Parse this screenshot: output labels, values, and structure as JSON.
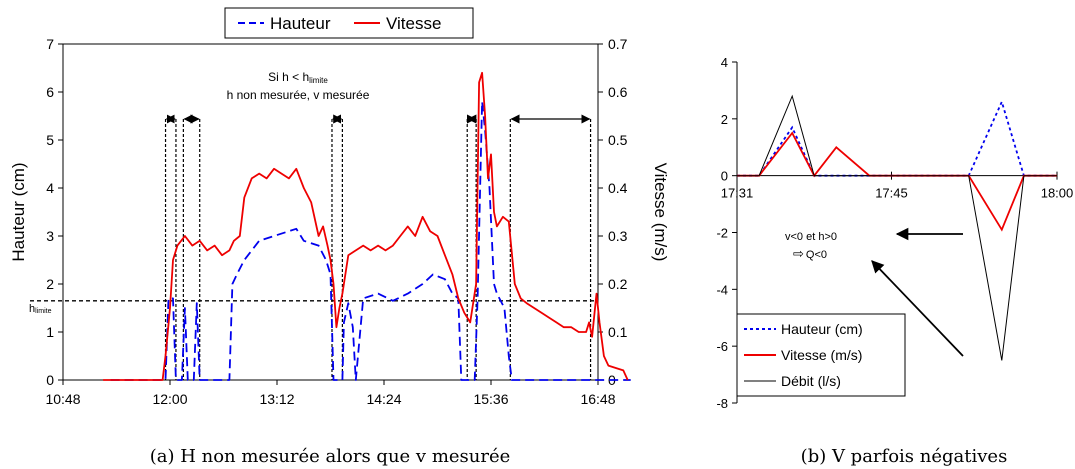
{
  "chart_data": [
    {
      "type": "line",
      "ylabel": "Hauteur (cm)",
      "y2label": "Vitesse (m/s)",
      "xticks": [
        "10:48",
        "12:00",
        "13:12",
        "14:24",
        "15:36",
        "16:48"
      ],
      "yticks": [
        "0",
        "1",
        "2",
        "3",
        "4",
        "5",
        "6",
        "7"
      ],
      "y2ticks": [
        "0",
        "0.1",
        "0.2",
        "0.3",
        "0.4",
        "0.5",
        "0.6",
        "0.7"
      ],
      "ylim": [
        0,
        7
      ],
      "y2lim": [
        0,
        0.7
      ],
      "grid": false,
      "legend": "top",
      "caption": "(a) H non mesurée alors que v mesurée",
      "h_limite_label_main": "h",
      "h_limite_label_sub": "limite",
      "h_limite_value": 1.65,
      "annotation_line1": "Si h < h",
      "annotation_line1_sub": "limite",
      "annotation_line2": "h non mesurée, v mesurée",
      "series": [
        {
          "name": "Hauteur",
          "axis": "left",
          "color": "#0000ee",
          "style": "dashed",
          "points": [
            [
              "11:20",
              0
            ],
            [
              "11:50",
              0
            ],
            [
              "11:57",
              0
            ],
            [
              "11:59",
              1.7
            ],
            [
              "12:02",
              1.7
            ],
            [
              "12:04",
              0
            ],
            [
              "12:08",
              0
            ],
            [
              "12:10",
              1.5
            ],
            [
              "12:12",
              0
            ],
            [
              "12:16",
              0
            ],
            [
              "12:18",
              1.6
            ],
            [
              "12:20",
              0
            ],
            [
              "12:40",
              0
            ],
            [
              "12:42",
              2.0
            ],
            [
              "12:45",
              2.2
            ],
            [
              "12:50",
              2.5
            ],
            [
              "13:00",
              2.9
            ],
            [
              "13:10",
              3.0
            ],
            [
              "13:20",
              3.1
            ],
            [
              "13:25",
              3.15
            ],
            [
              "13:30",
              2.9
            ],
            [
              "13:40",
              2.8
            ],
            [
              "13:45",
              2.5
            ],
            [
              "13:48",
              2.2
            ],
            [
              "13:50",
              0
            ],
            [
              "13:56",
              0
            ],
            [
              "13:57",
              1.2
            ],
            [
              "14:00",
              1.6
            ],
            [
              "14:03",
              1.1
            ],
            [
              "14:05",
              0
            ],
            [
              "14:10",
              1.7
            ],
            [
              "14:20",
              1.8
            ],
            [
              "14:30",
              1.65
            ],
            [
              "14:40",
              1.8
            ],
            [
              "14:50",
              2.0
            ],
            [
              "14:57",
              2.2
            ],
            [
              "15:05",
              2.1
            ],
            [
              "15:10",
              1.8
            ],
            [
              "15:14",
              1.7
            ],
            [
              "15:16",
              0
            ],
            [
              "15:20",
              0
            ],
            [
              "15:25",
              0
            ],
            [
              "15:27",
              1.7
            ],
            [
              "15:30",
              5.8
            ],
            [
              "15:32",
              5.2
            ],
            [
              "15:35",
              4.0
            ],
            [
              "15:38",
              2.0
            ],
            [
              "15:40",
              1.8
            ],
            [
              "15:45",
              1.5
            ],
            [
              "15:48",
              0.5
            ],
            [
              "15:50",
              0
            ],
            [
              "17:10",
              0
            ]
          ]
        },
        {
          "name": "Vitesse",
          "axis": "right",
          "color": "#ee0000",
          "style": "solid",
          "points": [
            [
              "11:15",
              0
            ],
            [
              "11:55",
              0
            ],
            [
              "11:57",
              0.05
            ],
            [
              "12:00",
              0.15
            ],
            [
              "12:02",
              0.25
            ],
            [
              "12:05",
              0.28
            ],
            [
              "12:10",
              0.3
            ],
            [
              "12:15",
              0.28
            ],
            [
              "12:20",
              0.29
            ],
            [
              "12:25",
              0.27
            ],
            [
              "12:30",
              0.28
            ],
            [
              "12:35",
              0.26
            ],
            [
              "12:40",
              0.27
            ],
            [
              "12:43",
              0.29
            ],
            [
              "12:47",
              0.3
            ],
            [
              "12:50",
              0.38
            ],
            [
              "12:55",
              0.42
            ],
            [
              "13:00",
              0.43
            ],
            [
              "13:05",
              0.42
            ],
            [
              "13:10",
              0.44
            ],
            [
              "13:15",
              0.43
            ],
            [
              "13:20",
              0.42
            ],
            [
              "13:25",
              0.44
            ],
            [
              "13:30",
              0.4
            ],
            [
              "13:35",
              0.37
            ],
            [
              "13:40",
              0.3
            ],
            [
              "13:43",
              0.32
            ],
            [
              "13:46",
              0.28
            ],
            [
              "13:48",
              0.25
            ],
            [
              "13:50",
              0.2
            ],
            [
              "13:52",
              0.11
            ],
            [
              "13:54",
              0.15
            ],
            [
              "13:56",
              0.18
            ],
            [
              "14:00",
              0.26
            ],
            [
              "14:05",
              0.27
            ],
            [
              "14:10",
              0.28
            ],
            [
              "14:15",
              0.27
            ],
            [
              "14:20",
              0.28
            ],
            [
              "14:25",
              0.27
            ],
            [
              "14:30",
              0.28
            ],
            [
              "14:35",
              0.3
            ],
            [
              "14:40",
              0.32
            ],
            [
              "14:45",
              0.3
            ],
            [
              "14:50",
              0.34
            ],
            [
              "14:55",
              0.31
            ],
            [
              "15:00",
              0.3
            ],
            [
              "15:05",
              0.26
            ],
            [
              "15:10",
              0.22
            ],
            [
              "15:14",
              0.17
            ],
            [
              "15:18",
              0.14
            ],
            [
              "15:22",
              0.12
            ],
            [
              "15:26",
              0.2
            ],
            [
              "15:28",
              0.62
            ],
            [
              "15:30",
              0.64
            ],
            [
              "15:32",
              0.55
            ],
            [
              "15:34",
              0.42
            ],
            [
              "15:36",
              0.47
            ],
            [
              "15:38",
              0.35
            ],
            [
              "15:40",
              0.32
            ],
            [
              "15:44",
              0.34
            ],
            [
              "15:48",
              0.33
            ],
            [
              "15:52",
              0.2
            ],
            [
              "15:56",
              0.17
            ],
            [
              "16:00",
              0.16
            ],
            [
              "16:05",
              0.15
            ],
            [
              "16:10",
              0.14
            ],
            [
              "16:15",
              0.13
            ],
            [
              "16:20",
              0.12
            ],
            [
              "16:25",
              0.11
            ],
            [
              "16:30",
              0.11
            ],
            [
              "16:35",
              0.1
            ],
            [
              "16:40",
              0.1
            ],
            [
              "16:42",
              0.12
            ],
            [
              "16:44",
              0.09
            ],
            [
              "16:47",
              0.18
            ],
            [
              "16:49",
              0.12
            ],
            [
              "16:52",
              0.05
            ],
            [
              "16:55",
              0.03
            ],
            [
              "17:00",
              0.025
            ],
            [
              "17:05",
              0.02
            ],
            [
              "17:08",
              0
            ]
          ]
        }
      ],
      "bracket_windows": [
        [
          "11:57",
          "12:04"
        ],
        [
          "12:09",
          "12:20"
        ],
        [
          "13:49",
          "13:56"
        ],
        [
          "15:20",
          "15:26"
        ],
        [
          "15:49",
          "16:43"
        ]
      ]
    },
    {
      "type": "line",
      "xticks": [
        "17:31",
        "17:45",
        "18:00"
      ],
      "yticks": [
        "4",
        "2",
        "0",
        "-2",
        "-4",
        "-6",
        "-8"
      ],
      "ylim": [
        -8,
        4
      ],
      "grid": false,
      "legend": "bottom-left",
      "caption": "(b) V parfois négatives",
      "annotation_line1": "v<0 et h>0",
      "annotation_arrow": "⇨",
      "annotation_line2": "Q<0",
      "series": [
        {
          "name": "Hauteur (cm)",
          "color": "#0000ee",
          "style": "dotted",
          "points": [
            [
              "17:31",
              0
            ],
            [
              "17:33",
              0
            ],
            [
              "17:36",
              1.7
            ],
            [
              "17:38",
              0
            ],
            [
              "17:45",
              0
            ],
            [
              "17:52",
              0
            ],
            [
              "17:55",
              2.6
            ],
            [
              "17:57",
              0
            ],
            [
              "18:00",
              0
            ]
          ]
        },
        {
          "name": "Vitesse (m/s)",
          "color": "#ee0000",
          "style": "solid",
          "points": [
            [
              "17:31",
              0
            ],
            [
              "17:33",
              0
            ],
            [
              "17:36",
              1.5
            ],
            [
              "17:38",
              0
            ],
            [
              "17:40",
              1.0
            ],
            [
              "17:43",
              0
            ],
            [
              "17:46",
              0
            ],
            [
              "17:52",
              0
            ],
            [
              "17:55",
              -1.9
            ],
            [
              "17:57",
              0
            ],
            [
              "18:00",
              0
            ]
          ]
        },
        {
          "name": "Débit (l/s)",
          "color": "#000000",
          "style": "solid",
          "points": [
            [
              "17:31",
              0
            ],
            [
              "17:33",
              0
            ],
            [
              "17:36",
              2.8
            ],
            [
              "17:38",
              0
            ],
            [
              "17:52",
              0
            ],
            [
              "17:55",
              -6.5
            ],
            [
              "17:57",
              0
            ],
            [
              "18:00",
              0
            ]
          ]
        }
      ]
    }
  ]
}
